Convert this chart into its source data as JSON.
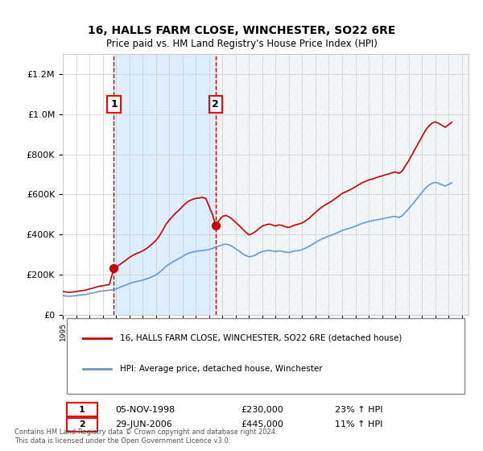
{
  "title": "16, HALLS FARM CLOSE, WINCHESTER, SO22 6RE",
  "subtitle": "Price paid vs. HM Land Registry's House Price Index (HPI)",
  "legend_line1": "16, HALLS FARM CLOSE, WINCHESTER, SO22 6RE (detached house)",
  "legend_line2": "HPI: Average price, detached house, Winchester",
  "table": [
    {
      "num": "1",
      "date": "05-NOV-1998",
      "price": "£230,000",
      "hpi": "23% ↑ HPI"
    },
    {
      "num": "2",
      "date": "29-JUN-2006",
      "price": "£445,000",
      "hpi": "11% ↑ HPI"
    }
  ],
  "footnote": "Contains HM Land Registry data © Crown copyright and database right 2024.\nThis data is licensed under the Open Government Licence v3.0.",
  "sale1_year": 1998.84,
  "sale1_price": 230000,
  "sale2_year": 2006.49,
  "sale2_price": 445000,
  "ylim": [
    0,
    1300000
  ],
  "xlim_start": 1995,
  "xlim_end": 2025.5,
  "red_color": "#cc0000",
  "blue_color": "#6699cc",
  "fill_color": "#ddeeff",
  "hatch_color": "#bbccdd",
  "background_color": "#ffffff",
  "grid_color": "#cccccc",
  "sale_line_color": "#cc0000",
  "hpi_data": {
    "years": [
      1995.0,
      1995.25,
      1995.5,
      1995.75,
      1996.0,
      1996.25,
      1996.5,
      1996.75,
      1997.0,
      1997.25,
      1997.5,
      1997.75,
      1998.0,
      1998.25,
      1998.5,
      1998.75,
      1999.0,
      1999.25,
      1999.5,
      1999.75,
      2000.0,
      2000.25,
      2000.5,
      2000.75,
      2001.0,
      2001.25,
      2001.5,
      2001.75,
      2002.0,
      2002.25,
      2002.5,
      2002.75,
      2003.0,
      2003.25,
      2003.5,
      2003.75,
      2004.0,
      2004.25,
      2004.5,
      2004.75,
      2005.0,
      2005.25,
      2005.5,
      2005.75,
      2006.0,
      2006.25,
      2006.5,
      2006.75,
      2007.0,
      2007.25,
      2007.5,
      2007.75,
      2008.0,
      2008.25,
      2008.5,
      2008.75,
      2009.0,
      2009.25,
      2009.5,
      2009.75,
      2010.0,
      2010.25,
      2010.5,
      2010.75,
      2011.0,
      2011.25,
      2011.5,
      2011.75,
      2012.0,
      2012.25,
      2012.5,
      2012.75,
      2013.0,
      2013.25,
      2013.5,
      2013.75,
      2014.0,
      2014.25,
      2014.5,
      2014.75,
      2015.0,
      2015.25,
      2015.5,
      2015.75,
      2016.0,
      2016.25,
      2016.5,
      2016.75,
      2017.0,
      2017.25,
      2017.5,
      2017.75,
      2018.0,
      2018.25,
      2018.5,
      2018.75,
      2019.0,
      2019.25,
      2019.5,
      2019.75,
      2020.0,
      2020.25,
      2020.5,
      2020.75,
      2021.0,
      2021.25,
      2021.5,
      2021.75,
      2022.0,
      2022.25,
      2022.5,
      2022.75,
      2023.0,
      2023.25,
      2023.5,
      2023.75,
      2024.0,
      2024.25
    ],
    "values": [
      95000,
      93000,
      92000,
      93000,
      95000,
      97000,
      99000,
      101000,
      105000,
      108000,
      112000,
      116000,
      118000,
      120000,
      122000,
      124000,
      128000,
      135000,
      142000,
      148000,
      155000,
      160000,
      165000,
      168000,
      172000,
      177000,
      183000,
      190000,
      198000,
      210000,
      225000,
      240000,
      252000,
      262000,
      272000,
      280000,
      290000,
      300000,
      308000,
      312000,
      316000,
      318000,
      320000,
      322000,
      325000,
      330000,
      338000,
      342000,
      348000,
      352000,
      348000,
      340000,
      328000,
      318000,
      305000,
      295000,
      288000,
      292000,
      298000,
      308000,
      315000,
      318000,
      320000,
      318000,
      315000,
      318000,
      316000,
      312000,
      310000,
      315000,
      318000,
      320000,
      325000,
      332000,
      340000,
      350000,
      360000,
      370000,
      378000,
      385000,
      392000,
      398000,
      405000,
      412000,
      420000,
      425000,
      430000,
      435000,
      442000,
      448000,
      455000,
      460000,
      465000,
      468000,
      472000,
      475000,
      478000,
      482000,
      485000,
      488000,
      490000,
      485000,
      492000,
      510000,
      528000,
      548000,
      568000,
      588000,
      610000,
      630000,
      645000,
      655000,
      660000,
      655000,
      648000,
      642000,
      650000,
      658000
    ]
  },
  "property_data": {
    "years": [
      1995.0,
      1995.25,
      1995.5,
      1995.75,
      1996.0,
      1996.25,
      1996.5,
      1996.75,
      1997.0,
      1997.25,
      1997.5,
      1997.75,
      1998.0,
      1998.25,
      1998.5,
      1998.84,
      1999.0,
      1999.25,
      1999.5,
      1999.75,
      2000.0,
      2000.25,
      2000.5,
      2000.75,
      2001.0,
      2001.25,
      2001.5,
      2001.75,
      2002.0,
      2002.25,
      2002.5,
      2002.75,
      2003.0,
      2003.25,
      2003.5,
      2003.75,
      2004.0,
      2004.25,
      2004.5,
      2004.75,
      2005.0,
      2005.25,
      2005.5,
      2005.75,
      2006.0,
      2006.25,
      2006.49,
      2006.75,
      2007.0,
      2007.25,
      2007.5,
      2007.75,
      2008.0,
      2008.25,
      2008.5,
      2008.75,
      2009.0,
      2009.25,
      2009.5,
      2009.75,
      2010.0,
      2010.25,
      2010.5,
      2010.75,
      2011.0,
      2011.25,
      2011.5,
      2011.75,
      2012.0,
      2012.25,
      2012.5,
      2012.75,
      2013.0,
      2013.25,
      2013.5,
      2013.75,
      2014.0,
      2014.25,
      2014.5,
      2014.75,
      2015.0,
      2015.25,
      2015.5,
      2015.75,
      2016.0,
      2016.25,
      2016.5,
      2016.75,
      2017.0,
      2017.25,
      2017.5,
      2017.75,
      2018.0,
      2018.25,
      2018.5,
      2018.75,
      2019.0,
      2019.25,
      2019.5,
      2019.75,
      2020.0,
      2020.25,
      2020.5,
      2020.75,
      2021.0,
      2021.25,
      2021.5,
      2021.75,
      2022.0,
      2022.25,
      2022.5,
      2022.75,
      2023.0,
      2023.25,
      2023.5,
      2023.75,
      2024.0,
      2024.25
    ],
    "values": [
      115000,
      113000,
      111000,
      113000,
      115000,
      118000,
      120000,
      123000,
      128000,
      132000,
      137000,
      142000,
      144000,
      147000,
      150000,
      230000,
      235000,
      248000,
      260000,
      272000,
      285000,
      295000,
      304000,
      310000,
      318000,
      328000,
      340000,
      355000,
      370000,
      392000,
      420000,
      450000,
      472000,
      490000,
      508000,
      522000,
      540000,
      556000,
      568000,
      575000,
      580000,
      582000,
      585000,
      580000,
      540000,
      500000,
      445000,
      470000,
      490000,
      495000,
      488000,
      475000,
      460000,
      445000,
      428000,
      412000,
      398000,
      405000,
      415000,
      430000,
      442000,
      448000,
      452000,
      448000,
      442000,
      448000,
      445000,
      438000,
      435000,
      442000,
      448000,
      452000,
      458000,
      468000,
      480000,
      495000,
      510000,
      525000,
      538000,
      548000,
      558000,
      568000,
      580000,
      592000,
      605000,
      612000,
      620000,
      628000,
      638000,
      648000,
      658000,
      665000,
      672000,
      676000,
      682000,
      688000,
      692000,
      698000,
      702000,
      708000,
      712000,
      705000,
      715000,
      742000,
      768000,
      798000,
      828000,
      858000,
      888000,
      918000,
      940000,
      955000,
      962000,
      955000,
      945000,
      935000,
      948000,
      960000
    ]
  }
}
